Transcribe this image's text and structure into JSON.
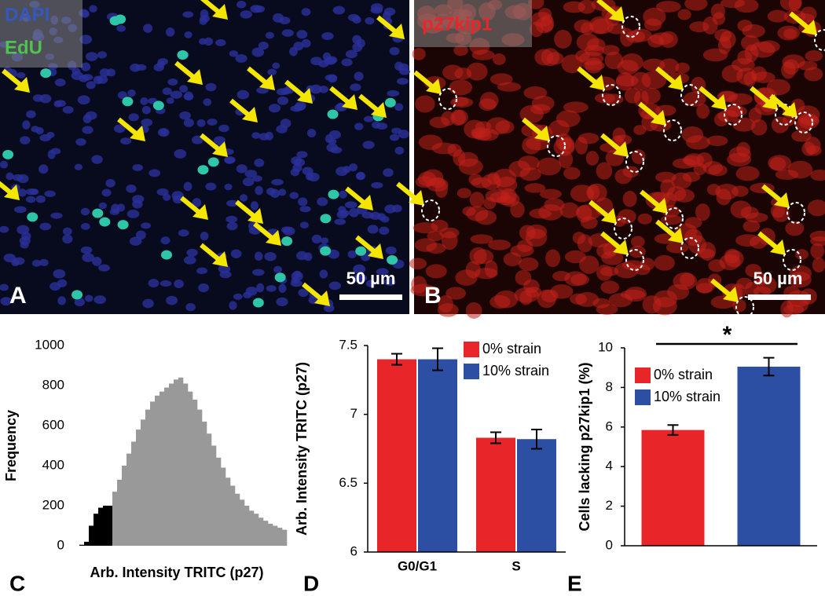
{
  "panels": {
    "a": {
      "label": "A",
      "stain_1": "DAPI",
      "stain_2": "EdU",
      "scale_bar": "50 µm"
    },
    "b": {
      "label": "B",
      "stain": "p27kip1",
      "scale_bar": "50 µm"
    }
  },
  "chart_data": [
    {
      "panel": "C",
      "type": "histogram",
      "ylabel": "Frequency",
      "xlabel": "Arb. Intensity TRITC (p27)",
      "bins": [
        0,
        1,
        2,
        3,
        4,
        5,
        6,
        7,
        8,
        9,
        10,
        11,
        12,
        13,
        14,
        15,
        16,
        17,
        18,
        19,
        20,
        21,
        22,
        23,
        24,
        25,
        26,
        27,
        28,
        29,
        30,
        31,
        32,
        33,
        34,
        35,
        36,
        37,
        38,
        39,
        40,
        41,
        42,
        43,
        44,
        45
      ],
      "counts": [
        0,
        5,
        20,
        100,
        160,
        190,
        200,
        200,
        270,
        330,
        400,
        460,
        520,
        580,
        630,
        680,
        720,
        750,
        770,
        790,
        810,
        830,
        840,
        810,
        770,
        730,
        680,
        620,
        560,
        500,
        440,
        390,
        340,
        300,
        260,
        230,
        200,
        175,
        160,
        140,
        125,
        110,
        100,
        90,
        80
      ],
      "colors": [
        "#000000",
        "#000000",
        "#000000",
        "#000000",
        "#000000",
        "#000000",
        "#000000",
        "#000000",
        "#999999",
        "#999999",
        "#999999",
        "#999999",
        "#999999",
        "#999999",
        "#999999",
        "#999999",
        "#999999",
        "#999999",
        "#999999",
        "#999999",
        "#999999",
        "#999999",
        "#999999",
        "#999999",
        "#999999",
        "#999999",
        "#999999",
        "#999999",
        "#999999",
        "#999999",
        "#999999",
        "#999999",
        "#999999",
        "#999999",
        "#999999",
        "#999999",
        "#999999",
        "#999999",
        "#999999",
        "#999999",
        "#999999",
        "#999999",
        "#999999",
        "#999999",
        "#999999"
      ],
      "xlim": [
        0,
        45
      ],
      "ylim": [
        0,
        1000
      ],
      "yticks": [
        0,
        200,
        400,
        600,
        800,
        1000
      ]
    },
    {
      "panel": "D",
      "type": "bar",
      "ylabel": "Arb. Intensity TRITC (p27)",
      "categories": [
        "G0/G1",
        "S"
      ],
      "series": [
        {
          "name": "0% strain",
          "color": "#e8262a",
          "values": [
            7.4,
            6.83
          ],
          "errors": [
            0.04,
            0.04
          ]
        },
        {
          "name": "10% strain",
          "color": "#2c4fa3",
          "values": [
            7.4,
            6.82
          ],
          "errors": [
            0.08,
            0.07
          ]
        }
      ],
      "ylim": [
        6,
        7.5
      ],
      "yticks": [
        6,
        6.5,
        7,
        7.5
      ],
      "legend": "upper right"
    },
    {
      "panel": "E",
      "type": "bar",
      "ylabel": "Cells lacking p27kip1 (%)",
      "categories": [
        null
      ],
      "series": [
        {
          "name": "0% strain",
          "color": "#e8262a",
          "values": [
            5.85
          ],
          "errors": [
            0.25
          ]
        },
        {
          "name": "10% strain",
          "color": "#2c4fa3",
          "values": [
            9.05
          ],
          "errors": [
            0.45
          ]
        }
      ],
      "ylim": [
        0,
        10
      ],
      "yticks": [
        0,
        2,
        4,
        6,
        8,
        10
      ],
      "annotation": "*",
      "legend": "upper left"
    }
  ]
}
